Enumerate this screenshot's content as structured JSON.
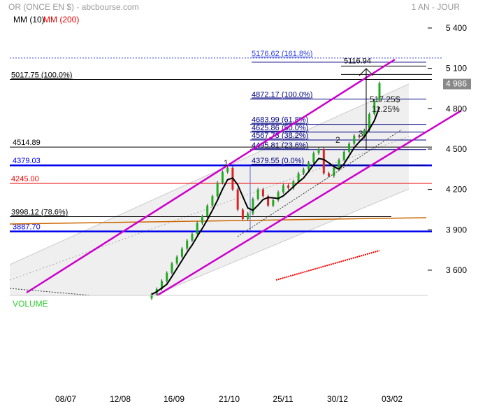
{
  "header": {
    "title": "OR (ONCE EN $) - abcbourse.com",
    "period": "1 AN - JOUR"
  },
  "legend": {
    "mm10": "MM (10)",
    "mm200": "MM (200)"
  },
  "volume_label": "VOLUME",
  "chart_data": {
    "type": "candlestick",
    "title": "OR (ONCE EN $) - abcbourse.com",
    "ylim": [
      3400,
      5450
    ],
    "y_ticks": [
      "5 400",
      "5 100",
      "4 800",
      "4 500",
      "4 200",
      "3 900",
      "3 600"
    ],
    "y_tick_values": [
      5400,
      5100,
      4800,
      4500,
      4200,
      3900,
      3600
    ],
    "x_ticks": [
      "08/07",
      "12/08",
      "16/09",
      "21/10",
      "25/11",
      "30/12",
      "03/02"
    ],
    "last_price": {
      "label": "4 986",
      "value": 4986,
      "color": "#888888"
    },
    "closes": [
      3420,
      3460,
      3520,
      3580,
      3650,
      3700,
      3760,
      3820,
      3870,
      3950,
      4000,
      4080,
      4150,
      4250,
      4330,
      4360,
      4200,
      4050,
      3980,
      4020,
      4130,
      4200,
      4150,
      4080,
      4120,
      4180,
      4230,
      4210,
      4260,
      4320,
      4350,
      4400,
      4470,
      4500,
      4320,
      4300,
      4360,
      4420,
      4480,
      4540,
      4600,
      4590,
      4640,
      4760,
      4860,
      4990
    ],
    "levels": [
      {
        "label": "5176.62  (161.8%)",
        "value": 5176.62,
        "color": "#000080",
        "style": "fib"
      },
      {
        "label": "5116.94",
        "value": 5116.94,
        "color": "#000000",
        "style": "target"
      },
      {
        "label": "5017.75  (100.0%)",
        "value": 5017.75,
        "color": "#000000",
        "style": "full"
      },
      {
        "label": "4872.17  (100.0%)",
        "value": 4872.17,
        "color": "#000080",
        "style": "fib"
      },
      {
        "label": "4683.99  (61.8%)",
        "value": 4683.99,
        "color": "#000080",
        "style": "fib"
      },
      {
        "label": "4625.86  (50.0%)",
        "value": 4625.86,
        "color": "#000080",
        "style": "fib"
      },
      {
        "label": "4567.73  (38.2%)",
        "value": 4567.73,
        "color": "#000080",
        "style": "fib"
      },
      {
        "label": "4495.81  (23.6%)",
        "value": 4495.81,
        "color": "#000080",
        "style": "fib"
      },
      {
        "label": "4514.89",
        "value": 4514.89,
        "color": "#000000",
        "style": "full"
      },
      {
        "label": "4379.03",
        "value": 4379.03,
        "color": "#0000ee",
        "style": "thick"
      },
      {
        "label": "4379.55  (0.0%)",
        "value": 4379.55,
        "color": "#000080",
        "style": "fib"
      },
      {
        "label": "4245.00",
        "value": 4245.0,
        "color": "#ee0000",
        "style": "full"
      },
      {
        "label": "3998.12  (78.6%)",
        "value": 3998.12,
        "color": "#000000",
        "style": "partial"
      },
      {
        "label": "3887.70",
        "value": 3887.7,
        "color": "#0000ee",
        "style": "thick"
      }
    ],
    "annotations": {
      "move": "517.25$",
      "pct": "11.25%",
      "waves": [
        "1",
        "2",
        "3"
      ]
    },
    "colors": {
      "up": "#22aa22",
      "down": "#dd2222",
      "channel": "#cc00cc",
      "mm10": "#000000",
      "mm200": "#ee0000"
    }
  }
}
